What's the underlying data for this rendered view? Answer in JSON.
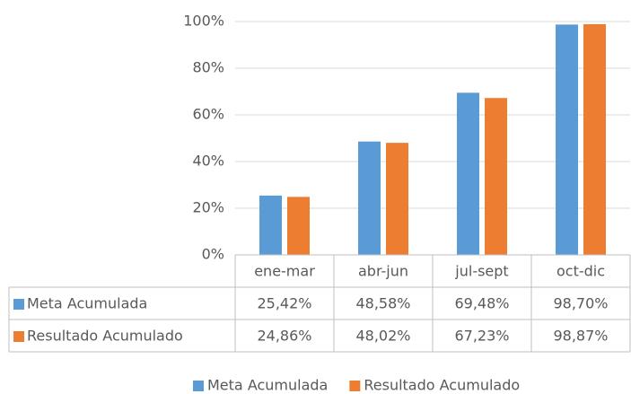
{
  "chart_data": {
    "type": "bar",
    "categories": [
      "ene-mar",
      "abr-jun",
      "jul-sept",
      "oct-dic"
    ],
    "series": [
      {
        "name": "Meta Acumulada",
        "color": "#5b9bd5",
        "values": [
          25.42,
          48.58,
          69.48,
          98.7
        ],
        "value_labels": [
          "25,42%",
          "48,58%",
          "69,48%",
          "98,70%"
        ]
      },
      {
        "name": "Resultado Acumulado",
        "color": "#ed7d31",
        "values": [
          24.86,
          48.02,
          67.23,
          98.87
        ],
        "value_labels": [
          "24,86%",
          "48,02%",
          "67,23%",
          "98,87%"
        ]
      }
    ],
    "ylim": [
      0,
      100
    ],
    "yticks": [
      {
        "value": 0,
        "label": "0%"
      },
      {
        "value": 20,
        "label": "20%"
      },
      {
        "value": 40,
        "label": "40%"
      },
      {
        "value": 60,
        "label": "60%"
      },
      {
        "value": 80,
        "label": "80%"
      },
      {
        "value": 100,
        "label": "100%"
      }
    ],
    "grid": true,
    "legend": "bottom",
    "data_table": true
  }
}
